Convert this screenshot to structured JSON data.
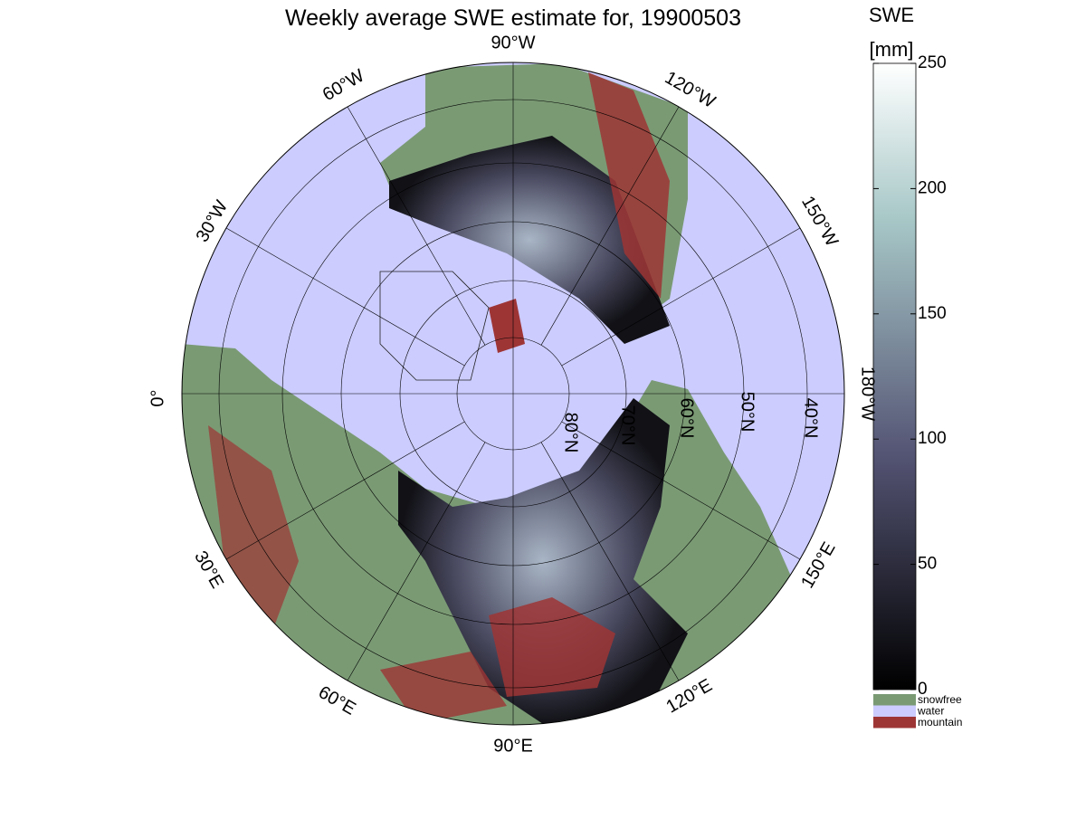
{
  "map": {
    "title": "Weekly average SWE estimate for, 19900503",
    "longitude_labels": [
      "90°W",
      "120°W",
      "150°W",
      "180°W",
      "150°E",
      "120°E",
      "90°E",
      "60°E",
      "30°E",
      "0°",
      "30°W",
      "60°W"
    ],
    "latitude_labels": [
      "80°N",
      "70°N",
      "60°N",
      "50°N",
      "40°N"
    ]
  },
  "colorbar": {
    "title": "SWE",
    "unit": "[mm]",
    "lim": [
      0,
      250
    ],
    "ticks": [
      0,
      50,
      100,
      150,
      200,
      250
    ]
  },
  "legend": [
    {
      "name": "snowfree",
      "color": "#7a9a74"
    },
    {
      "name": "water",
      "color": "#ccccff"
    },
    {
      "name": "mountain",
      "color": "#9e3535"
    }
  ]
}
